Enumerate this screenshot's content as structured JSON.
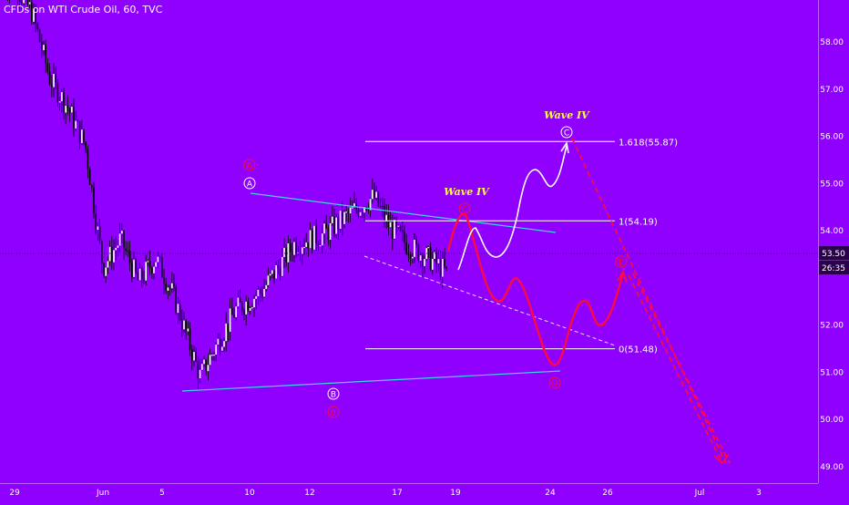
{
  "header": {
    "symbol_title": "CFDs on WTI Crude Oil, 60, TVC"
  },
  "colors": {
    "background": "#8f00ff",
    "candles": "#ffffff",
    "trendline": "#3fd4e8",
    "projection_red": "#ff0a3c",
    "projection_white": "#ffffff",
    "label_yellow": "#ffff33",
    "price_tag_bg": "#2a004d"
  },
  "price_axis": {
    "ticks": [
      "58.00",
      "57.00",
      "56.00",
      "55.00",
      "54.00",
      "52.00",
      "51.00",
      "50.00",
      "49.00"
    ],
    "current_price": "53.50",
    "countdown": "26:35"
  },
  "time_axis": {
    "ticks": [
      "29",
      "Jun",
      "5",
      "10",
      "12",
      "17",
      "19",
      "24",
      "26",
      "Jul",
      "3"
    ]
  },
  "fib_levels": [
    {
      "label": "1.618(55.87)",
      "price": 55.87
    },
    {
      "label": "1(54.19)",
      "price": 54.19
    },
    {
      "label": "0(51.48)",
      "price": 51.48
    }
  ],
  "wave_labels": [
    {
      "text": "Wave IV"
    },
    {
      "text": "Wave IV"
    }
  ],
  "points": [
    {
      "text": "A",
      "style": "white"
    },
    {
      "text": "A",
      "style": "red"
    },
    {
      "text": "B",
      "style": "white"
    },
    {
      "text": "B",
      "style": "red"
    },
    {
      "text": "C",
      "style": "red"
    },
    {
      "text": "C",
      "style": "white"
    },
    {
      "text": "D",
      "style": "red"
    },
    {
      "text": "E",
      "style": "red"
    }
  ],
  "chart_data": {
    "type": "candlestick",
    "title": "CFDs on WTI Crude Oil, 60, TVC",
    "ylim": [
      48.6,
      59
    ],
    "x_ticks": [
      "29",
      "Jun",
      "5",
      "10",
      "12",
      "17",
      "19",
      "24",
      "26",
      "Jul",
      "3"
    ],
    "y_ticks": [
      58,
      57,
      56,
      55,
      54,
      52,
      51,
      50,
      49
    ],
    "close_path": [
      [
        "29",
        59.0
      ],
      [
        "Jun",
        57.0
      ],
      [
        "Jun",
        55.5
      ],
      [
        "Jun",
        53.1
      ],
      [
        "5",
        52.6
      ],
      [
        "5",
        50.9
      ],
      [
        "10",
        54.7
      ],
      [
        "12",
        50.9
      ],
      [
        "17",
        52.5
      ],
      [
        "19",
        51.6
      ],
      [
        "19",
        53.5
      ]
    ],
    "current_price": 53.5,
    "fibonacci": [
      {
        "ratio": "1.618",
        "price": 55.87
      },
      {
        "ratio": "1",
        "price": 54.19
      },
      {
        "ratio": "0",
        "price": 51.48
      }
    ],
    "annotations": [
      "Wave IV",
      "Wave IV",
      "A",
      "A",
      "B",
      "B",
      "C",
      "C",
      "D",
      "E"
    ]
  }
}
